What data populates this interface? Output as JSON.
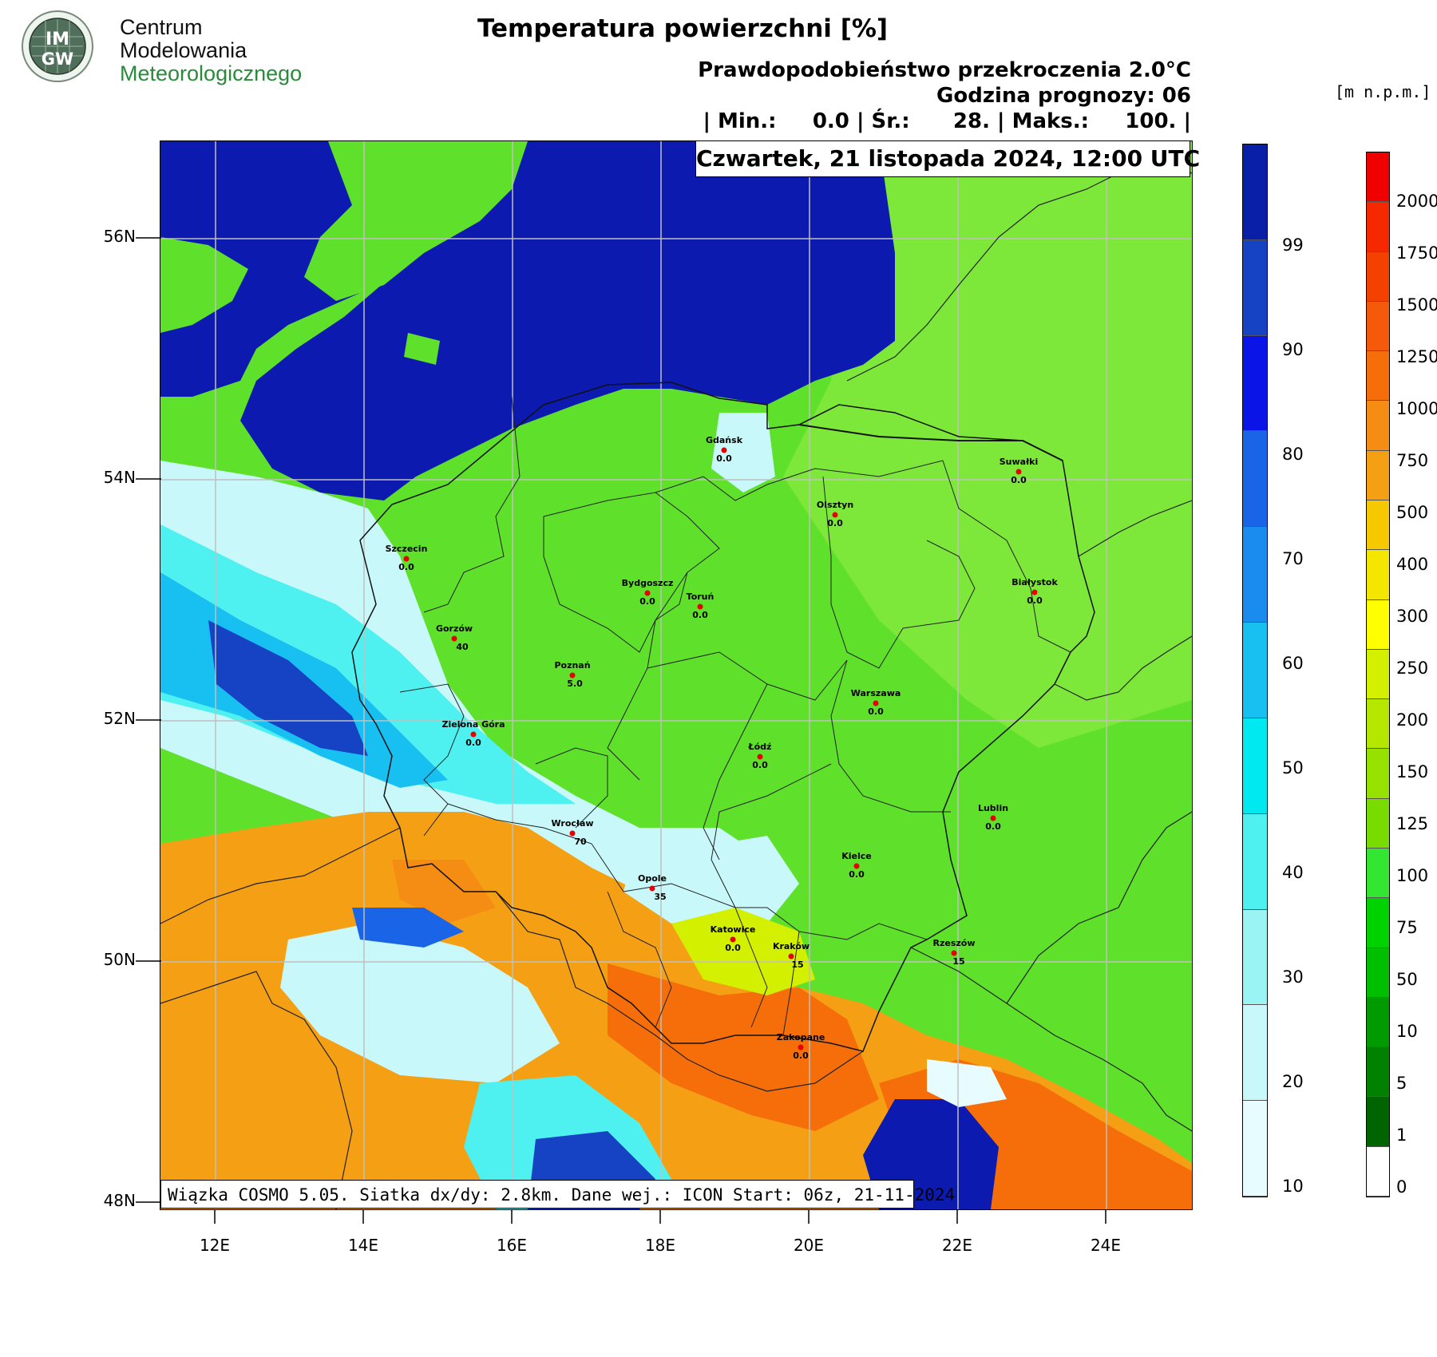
{
  "logo": {
    "badge_text_top": "IM",
    "badge_text_bottom": "GW",
    "line1": "Centrum",
    "line2": "Modelowania",
    "line3": "Meteorologicznego"
  },
  "title": "Temperatura powierzchni [%]",
  "subtitle": "Prawdopodobieństwo przekroczenia 2.0°C",
  "forecast_hour": "Godzina prognozy: 06",
  "stats": "| Min.:     0.0 | Śr.:      28. | Maks.:     100. |",
  "date_text": "Czwartek, 21 listopada 2024, 12:00 UTC",
  "footer_text": "Wiązka COSMO 5.05. Siatka dx/dy: 2.8km. Dane wej.: ICON Start: 06z, 21-11-2024",
  "units_label": "[m n.p.m.]",
  "lat_labels": [
    "56N",
    "54N",
    "52N",
    "50N",
    "48N"
  ],
  "lon_labels": [
    "12E",
    "14E",
    "16E",
    "18E",
    "20E",
    "22E",
    "24E"
  ],
  "probability_scale": {
    "labels": [
      "99",
      "90",
      "80",
      "70",
      "60",
      "50",
      "40",
      "30",
      "20",
      "10"
    ],
    "colors": [
      "#0a1fa8",
      "#1543c4",
      "#0a14e6",
      "#1a64e8",
      "#1a8cf0",
      "#18c0f2",
      "#00e8f0",
      "#4ff0f0",
      "#9af4f4",
      "#c8f8fa",
      "#e6fcfe"
    ]
  },
  "elevation_scale": {
    "labels": [
      "2000",
      "1750",
      "1500",
      "1250",
      "1000",
      "750",
      "500",
      "400",
      "300",
      "250",
      "200",
      "150",
      "125",
      "100",
      "75",
      "50",
      "10",
      "5",
      "1",
      "0"
    ],
    "colors": [
      "#f00000",
      "#f52800",
      "#f54100",
      "#f55a0a",
      "#f56e0a",
      "#f58c14",
      "#f5a014",
      "#f5c800",
      "#f5e600",
      "#ffff00",
      "#d2f000",
      "#b4e600",
      "#96e100",
      "#78dc00",
      "#32e632",
      "#00d200",
      "#00be00",
      "#009b00",
      "#008200",
      "#006400",
      "#ffffff"
    ]
  },
  "cities": [
    {
      "name": "Gdańsk",
      "value": "0.0"
    },
    {
      "name": "Suwałki",
      "value": "0.0"
    },
    {
      "name": "Olsztyn",
      "value": "0.0"
    },
    {
      "name": "Szczecin",
      "value": "0.0"
    },
    {
      "name": "Bydgoszcz",
      "value": "0.0"
    },
    {
      "name": "Toruń",
      "value": "0.0"
    },
    {
      "name": "Białystok",
      "value": "0.0"
    },
    {
      "name": "Gorzów",
      "value": "40"
    },
    {
      "name": "Poznań",
      "value": "5.0"
    },
    {
      "name": "Warszawa",
      "value": "0.0"
    },
    {
      "name": "Zielona Góra",
      "value": "0.0"
    },
    {
      "name": "Łódź",
      "value": "0.0"
    },
    {
      "name": "Lublin",
      "value": "0.0"
    },
    {
      "name": "Wrocław",
      "value": "70"
    },
    {
      "name": "Kielce",
      "value": "0.0"
    },
    {
      "name": "Opole",
      "value": "35"
    },
    {
      "name": "Katowice",
      "value": "0.0"
    },
    {
      "name": "Kraków",
      "value": "15"
    },
    {
      "name": "Rzeszów",
      "value": "15"
    },
    {
      "name": "Zakopane",
      "value": "0.0"
    }
  ]
}
